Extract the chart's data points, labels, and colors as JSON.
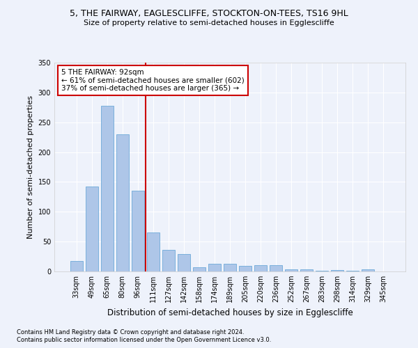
{
  "title1": "5, THE FAIRWAY, EAGLESCLIFFE, STOCKTON-ON-TEES, TS16 9HL",
  "title2": "Size of property relative to semi-detached houses in Egglescliffe",
  "xlabel": "Distribution of semi-detached houses by size in Egglescliffe",
  "ylabel": "Number of semi-detached properties",
  "categories": [
    "33sqm",
    "49sqm",
    "65sqm",
    "80sqm",
    "96sqm",
    "111sqm",
    "127sqm",
    "142sqm",
    "158sqm",
    "174sqm",
    "189sqm",
    "205sqm",
    "220sqm",
    "236sqm",
    "252sqm",
    "267sqm",
    "283sqm",
    "298sqm",
    "314sqm",
    "329sqm",
    "345sqm"
  ],
  "values": [
    18,
    142,
    278,
    230,
    135,
    65,
    36,
    29,
    7,
    13,
    13,
    9,
    10,
    10,
    4,
    4,
    1,
    2,
    1,
    4,
    0
  ],
  "bar_color": "#aec6e8",
  "bar_edge_color": "#5a9fd4",
  "vline_pos": 4.5,
  "property_size": "92sqm",
  "property_name": "5 THE FAIRWAY",
  "pct_smaller": 61,
  "count_smaller": 602,
  "pct_larger": 37,
  "count_larger": 365,
  "annotation_box_color": "#ffffff",
  "annotation_box_edge": "#cc0000",
  "vline_color": "#cc0000",
  "footnote1": "Contains HM Land Registry data © Crown copyright and database right 2024.",
  "footnote2": "Contains public sector information licensed under the Open Government Licence v3.0.",
  "ylim": [
    0,
    350
  ],
  "yticks": [
    0,
    50,
    100,
    150,
    200,
    250,
    300,
    350
  ],
  "bg_color": "#eef2fb",
  "grid_color": "#ffffff"
}
